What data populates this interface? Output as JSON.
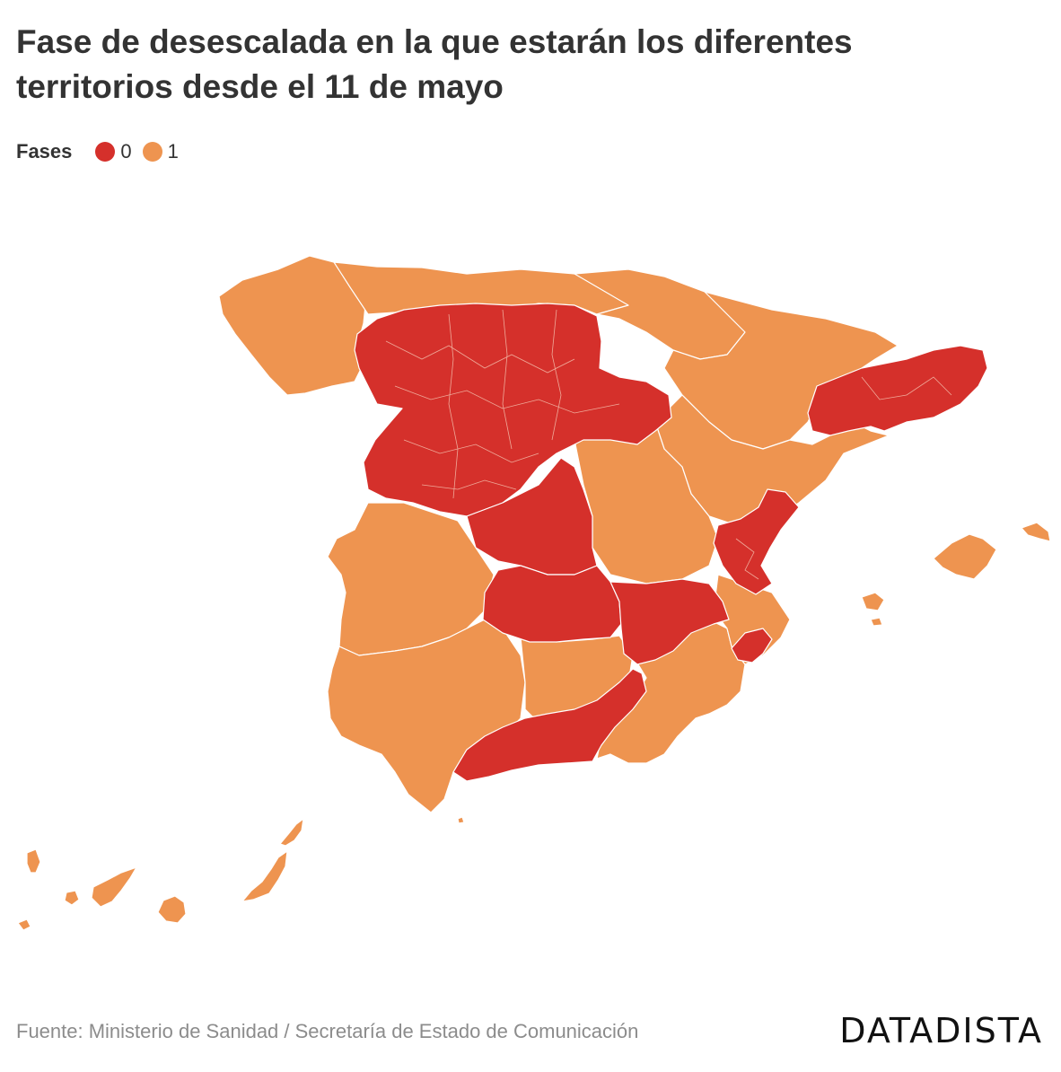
{
  "title": "Fase de desescalada en la que estarán los diferentes territorios desde el 11 de mayo",
  "legend": {
    "title": "Fases",
    "items": [
      {
        "label": "0",
        "color": "#d5302b"
      },
      {
        "label": "1",
        "color": "#ee9450"
      }
    ]
  },
  "map": {
    "colors": {
      "phase0": "#d5302b",
      "phase1": "#ee9450",
      "border": "#ffffff"
    }
  },
  "footer": {
    "source": "Fuente: Ministerio de Sanidad / Secretaría de Estado de Comunicación",
    "brand": "DATADISTA"
  }
}
